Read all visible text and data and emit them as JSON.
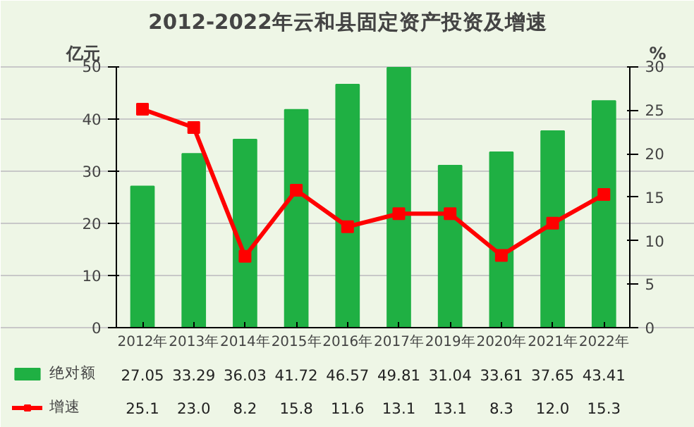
{
  "chart_data": {
    "type": "bar",
    "title": "2012-2022年云和县固定资产投资及增速",
    "ylabel": "亿元",
    "y2label": "%",
    "categories": [
      "2012年",
      "2013年",
      "2014年",
      "2015年",
      "2016年",
      "2017年",
      "2019年",
      "2020年",
      "2021年",
      "2022年"
    ],
    "series": [
      {
        "name": "绝对额",
        "color": "#1fb043",
        "values": [
          27.05,
          33.29,
          36.03,
          41.72,
          46.57,
          49.81,
          31.04,
          33.61,
          37.65,
          43.41
        ],
        "value_labels": [
          "27.05",
          "33.29",
          "36.03",
          "41.72",
          "46.57",
          "49.81",
          "31.04",
          "33.61",
          "37.65",
          "43.41"
        ]
      },
      {
        "name": "增速",
        "type": "line",
        "axis": "y2",
        "color": "#ff0000",
        "marker": "square",
        "values": [
          25.1,
          23.0,
          8.2,
          15.8,
          11.6,
          13.1,
          13.1,
          8.3,
          12.0,
          15.3
        ],
        "value_labels": [
          "25.1",
          "23.0",
          "8.2",
          "15.8",
          "11.6",
          "13.1",
          "13.1",
          "8.3",
          "12.0",
          "15.3"
        ]
      }
    ],
    "ylim": [
      0,
      50
    ],
    "yticks": [
      0,
      10,
      20,
      30,
      40,
      50
    ],
    "y2lim": [
      0,
      30
    ],
    "y2ticks": [
      0,
      5,
      10,
      15,
      20,
      25,
      30
    ],
    "grid": "y",
    "legend": "bottom"
  }
}
